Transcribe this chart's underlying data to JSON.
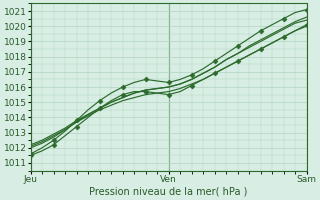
{
  "xlabel": "Pression niveau de la mer( hPa )",
  "xlim": [
    0,
    48
  ],
  "ylim": [
    1010.5,
    1021.5
  ],
  "yticks": [
    1011,
    1012,
    1013,
    1014,
    1015,
    1016,
    1017,
    1018,
    1019,
    1020,
    1021
  ],
  "xtick_positions": [
    0,
    24,
    48
  ],
  "xtick_labels": [
    "Jeu",
    "Ven",
    "Sam"
  ],
  "bg_color": "#d8eee4",
  "grid_color": "#b0d4c0",
  "line_color": "#2d6b2d",
  "lines": [
    {
      "y": [
        1011.6,
        1012.0,
        1012.5,
        1013.1,
        1013.8,
        1014.5,
        1015.1,
        1015.6,
        1016.0,
        1016.3,
        1016.5,
        1016.4,
        1016.3,
        1016.5,
        1016.8,
        1017.2,
        1017.7,
        1018.2,
        1018.7,
        1019.2,
        1019.7,
        1020.1,
        1020.5,
        1020.9,
        1021.1
      ],
      "markers": true
    },
    {
      "y": [
        1012.0,
        1012.3,
        1012.7,
        1013.2,
        1013.7,
        1014.2,
        1014.6,
        1015.0,
        1015.3,
        1015.6,
        1015.8,
        1015.9,
        1016.0,
        1016.2,
        1016.5,
        1016.9,
        1017.3,
        1017.8,
        1018.2,
        1018.6,
        1019.0,
        1019.4,
        1019.8,
        1020.2,
        1020.4
      ],
      "markers": false
    },
    {
      "y": [
        1012.1,
        1012.4,
        1012.8,
        1013.2,
        1013.7,
        1014.1,
        1014.5,
        1014.8,
        1015.1,
        1015.3,
        1015.5,
        1015.6,
        1015.7,
        1015.9,
        1016.2,
        1016.5,
        1016.9,
        1017.3,
        1017.7,
        1018.1,
        1018.5,
        1018.9,
        1019.3,
        1019.7,
        1020.0
      ],
      "markers": false
    },
    {
      "y": [
        1011.5,
        1011.8,
        1012.2,
        1012.8,
        1013.4,
        1014.0,
        1014.6,
        1015.1,
        1015.5,
        1015.7,
        1015.7,
        1015.6,
        1015.5,
        1015.7,
        1016.1,
        1016.5,
        1016.9,
        1017.3,
        1017.7,
        1018.1,
        1018.5,
        1018.9,
        1019.3,
        1019.7,
        1020.1
      ],
      "markers": true
    },
    {
      "y": [
        1012.2,
        1012.5,
        1012.9,
        1013.3,
        1013.8,
        1014.2,
        1014.6,
        1015.0,
        1015.3,
        1015.6,
        1015.8,
        1015.9,
        1016.0,
        1016.2,
        1016.5,
        1016.9,
        1017.3,
        1017.8,
        1018.2,
        1018.7,
        1019.1,
        1019.5,
        1019.9,
        1020.3,
        1020.6
      ],
      "markers": false
    }
  ],
  "marker_style": "D",
  "marker_size": 2.5,
  "marker_every": 2,
  "linewidth": 0.85,
  "figsize": [
    3.2,
    2.0
  ],
  "dpi": 100
}
